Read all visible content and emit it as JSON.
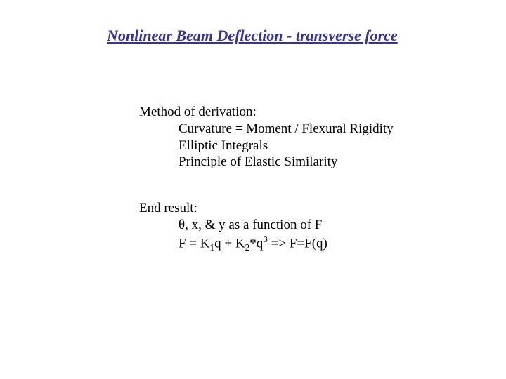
{
  "title": "Nonlinear Beam Deflection - transverse force",
  "section1": {
    "header": "Method of derivation:",
    "items": [
      "Curvature = Moment / Flexural Rigidity",
      "Elliptic Integrals",
      "Principle of Elastic Similarity"
    ]
  },
  "section2": {
    "header": "End result:",
    "line1_prefix": "θ, x, & y as a function of F",
    "line2_text": "F = K",
    "line2_sub1": "1",
    "line2_mid1": "q + K",
    "line2_sub2": "2",
    "line2_mid2": "*q",
    "line2_sup": "3",
    "line2_end": "   =>   F=F(q)"
  },
  "colors": {
    "title": "#333399",
    "body": "#000000",
    "background": "#ffffff"
  },
  "fonts": {
    "title_size": 22,
    "body_size": 19,
    "family": "Times New Roman"
  }
}
